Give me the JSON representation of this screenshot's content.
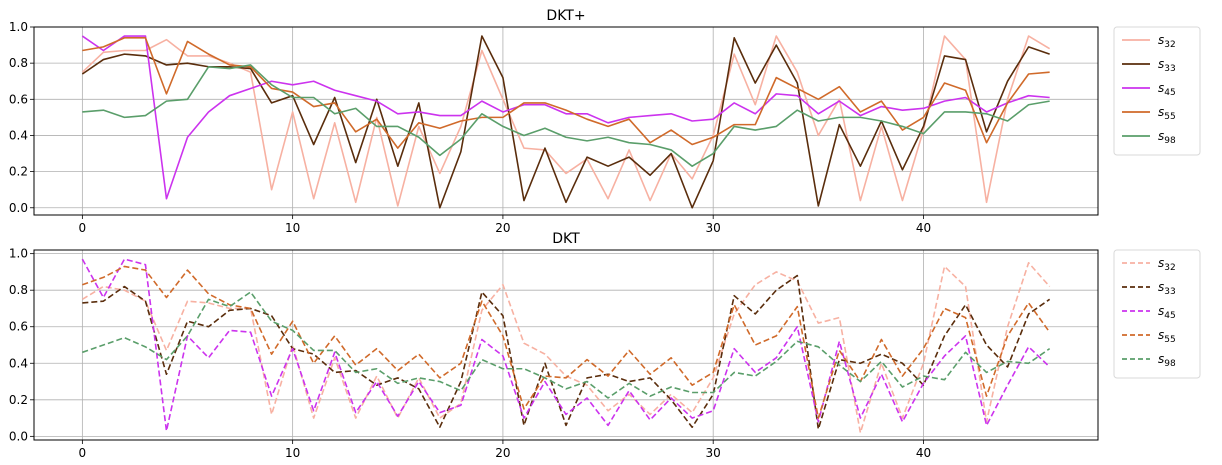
{
  "chart_data": [
    {
      "type": "line",
      "title": "DKT+",
      "linestyle": "solid",
      "xlim": [
        -2.3,
        48.3
      ],
      "ylim": [
        -0.04,
        1.0
      ],
      "xticks": [
        0,
        10,
        20,
        30,
        40
      ],
      "yticks": [
        0.0,
        0.2,
        0.4,
        0.6,
        0.8,
        1.0
      ],
      "grid": true,
      "legend": "outside-right",
      "series": [
        {
          "name": "s",
          "sub": "32",
          "color": "#f7b1a2",
          "values": [
            0.75,
            0.86,
            0.87,
            0.87,
            0.93,
            0.84,
            0.84,
            0.8,
            0.75,
            0.1,
            0.53,
            0.05,
            0.47,
            0.03,
            0.5,
            0.01,
            0.45,
            0.19,
            0.45,
            0.87,
            0.6,
            0.33,
            0.32,
            0.19,
            0.27,
            0.05,
            0.32,
            0.04,
            0.3,
            0.16,
            0.4,
            0.85,
            0.57,
            0.95,
            0.75,
            0.4,
            0.6,
            0.04,
            0.45,
            0.04,
            0.43,
            0.95,
            0.82,
            0.03,
            0.6,
            0.95,
            0.88
          ]
        },
        {
          "name": "s",
          "sub": "33",
          "color": "#5a2d0c",
          "values": [
            0.74,
            0.82,
            0.85,
            0.84,
            0.79,
            0.8,
            0.78,
            0.78,
            0.77,
            0.58,
            0.62,
            0.35,
            0.61,
            0.25,
            0.6,
            0.23,
            0.58,
            0.0,
            0.31,
            0.95,
            0.72,
            0.04,
            0.33,
            0.03,
            0.28,
            0.23,
            0.28,
            0.18,
            0.3,
            0.0,
            0.26,
            0.94,
            0.69,
            0.9,
            0.69,
            0.01,
            0.46,
            0.23,
            0.48,
            0.21,
            0.45,
            0.84,
            0.82,
            0.42,
            0.7,
            0.89,
            0.85
          ]
        },
        {
          "name": "s",
          "sub": "45",
          "color": "#cc33ee",
          "values": [
            0.95,
            0.87,
            0.95,
            0.95,
            0.05,
            0.39,
            0.53,
            0.62,
            0.66,
            0.7,
            0.68,
            0.7,
            0.65,
            0.62,
            0.59,
            0.52,
            0.53,
            0.51,
            0.51,
            0.59,
            0.53,
            0.57,
            0.57,
            0.52,
            0.52,
            0.47,
            0.5,
            0.51,
            0.52,
            0.48,
            0.49,
            0.58,
            0.52,
            0.63,
            0.62,
            0.52,
            0.59,
            0.51,
            0.56,
            0.54,
            0.55,
            0.59,
            0.61,
            0.53,
            0.58,
            0.62,
            0.61
          ]
        },
        {
          "name": "s",
          "sub": "55",
          "color": "#d06a2a",
          "values": [
            0.87,
            0.89,
            0.94,
            0.94,
            0.63,
            0.92,
            0.85,
            0.79,
            0.78,
            0.66,
            0.64,
            0.56,
            0.58,
            0.42,
            0.49,
            0.33,
            0.47,
            0.44,
            0.48,
            0.5,
            0.5,
            0.58,
            0.58,
            0.54,
            0.49,
            0.45,
            0.49,
            0.36,
            0.43,
            0.35,
            0.39,
            0.46,
            0.46,
            0.72,
            0.66,
            0.6,
            0.67,
            0.53,
            0.59,
            0.43,
            0.5,
            0.69,
            0.65,
            0.36,
            0.58,
            0.74,
            0.75
          ]
        },
        {
          "name": "s",
          "sub": "98",
          "color": "#5a9e6a",
          "values": [
            0.53,
            0.54,
            0.5,
            0.51,
            0.59,
            0.6,
            0.78,
            0.77,
            0.79,
            0.68,
            0.61,
            0.61,
            0.52,
            0.55,
            0.45,
            0.45,
            0.39,
            0.29,
            0.38,
            0.52,
            0.45,
            0.4,
            0.44,
            0.39,
            0.37,
            0.39,
            0.36,
            0.35,
            0.32,
            0.23,
            0.3,
            0.45,
            0.43,
            0.45,
            0.54,
            0.48,
            0.5,
            0.5,
            0.48,
            0.45,
            0.41,
            0.53,
            0.53,
            0.52,
            0.48,
            0.57,
            0.59
          ]
        }
      ]
    },
    {
      "type": "line",
      "title": "DKT",
      "linestyle": "dashed",
      "xlim": [
        -2.3,
        48.3
      ],
      "ylim": [
        -0.02,
        1.02
      ],
      "xticks": [
        0,
        10,
        20,
        30,
        40
      ],
      "yticks": [
        0.0,
        0.2,
        0.4,
        0.6,
        0.8,
        1.0
      ],
      "grid": true,
      "legend": "outside-right",
      "series": [
        {
          "name": "s",
          "sub": "32",
          "color": "#f7b1a2",
          "values": [
            0.75,
            0.82,
            0.8,
            0.74,
            0.47,
            0.74,
            0.73,
            0.7,
            0.7,
            0.12,
            0.5,
            0.1,
            0.43,
            0.1,
            0.33,
            0.1,
            0.32,
            0.1,
            0.18,
            0.69,
            0.83,
            0.51,
            0.45,
            0.33,
            0.28,
            0.14,
            0.23,
            0.12,
            0.23,
            0.13,
            0.32,
            0.67,
            0.83,
            0.9,
            0.85,
            0.62,
            0.65,
            0.02,
            0.4,
            0.1,
            0.4,
            0.93,
            0.82,
            0.08,
            0.6,
            0.95,
            0.82
          ]
        },
        {
          "name": "s",
          "sub": "33",
          "color": "#5a2d0c",
          "values": [
            0.73,
            0.74,
            0.82,
            0.74,
            0.34,
            0.63,
            0.6,
            0.69,
            0.7,
            0.66,
            0.48,
            0.45,
            0.35,
            0.36,
            0.28,
            0.32,
            0.26,
            0.05,
            0.3,
            0.79,
            0.66,
            0.06,
            0.4,
            0.06,
            0.32,
            0.34,
            0.3,
            0.32,
            0.2,
            0.05,
            0.23,
            0.77,
            0.67,
            0.8,
            0.88,
            0.04,
            0.42,
            0.4,
            0.45,
            0.4,
            0.28,
            0.55,
            0.72,
            0.5,
            0.38,
            0.67,
            0.75
          ]
        },
        {
          "name": "s",
          "sub": "45",
          "color": "#cc33ee",
          "values": [
            0.97,
            0.76,
            0.97,
            0.94,
            0.03,
            0.55,
            0.43,
            0.58,
            0.57,
            0.22,
            0.48,
            0.14,
            0.46,
            0.13,
            0.3,
            0.11,
            0.3,
            0.13,
            0.17,
            0.53,
            0.44,
            0.1,
            0.3,
            0.12,
            0.21,
            0.06,
            0.25,
            0.09,
            0.21,
            0.1,
            0.14,
            0.48,
            0.35,
            0.43,
            0.6,
            0.08,
            0.52,
            0.1,
            0.34,
            0.08,
            0.29,
            0.44,
            0.55,
            0.06,
            0.28,
            0.49,
            0.38
          ]
        },
        {
          "name": "s",
          "sub": "55",
          "color": "#d06a2a",
          "values": [
            0.83,
            0.87,
            0.93,
            0.91,
            0.76,
            0.91,
            0.78,
            0.72,
            0.7,
            0.45,
            0.63,
            0.4,
            0.55,
            0.39,
            0.48,
            0.36,
            0.45,
            0.32,
            0.4,
            0.74,
            0.55,
            0.15,
            0.33,
            0.32,
            0.42,
            0.33,
            0.47,
            0.34,
            0.43,
            0.28,
            0.35,
            0.72,
            0.5,
            0.55,
            0.71,
            0.1,
            0.47,
            0.3,
            0.53,
            0.33,
            0.48,
            0.7,
            0.65,
            0.22,
            0.55,
            0.73,
            0.57
          ]
        },
        {
          "name": "s",
          "sub": "98",
          "color": "#5a9e6a",
          "values": [
            0.46,
            0.5,
            0.54,
            0.49,
            0.42,
            0.55,
            0.75,
            0.71,
            0.79,
            0.63,
            0.58,
            0.47,
            0.47,
            0.35,
            0.37,
            0.29,
            0.32,
            0.3,
            0.25,
            0.42,
            0.37,
            0.37,
            0.32,
            0.26,
            0.3,
            0.21,
            0.29,
            0.22,
            0.27,
            0.24,
            0.24,
            0.35,
            0.33,
            0.41,
            0.52,
            0.49,
            0.39,
            0.3,
            0.41,
            0.27,
            0.33,
            0.31,
            0.46,
            0.35,
            0.41,
            0.4,
            0.48
          ]
        }
      ]
    }
  ]
}
